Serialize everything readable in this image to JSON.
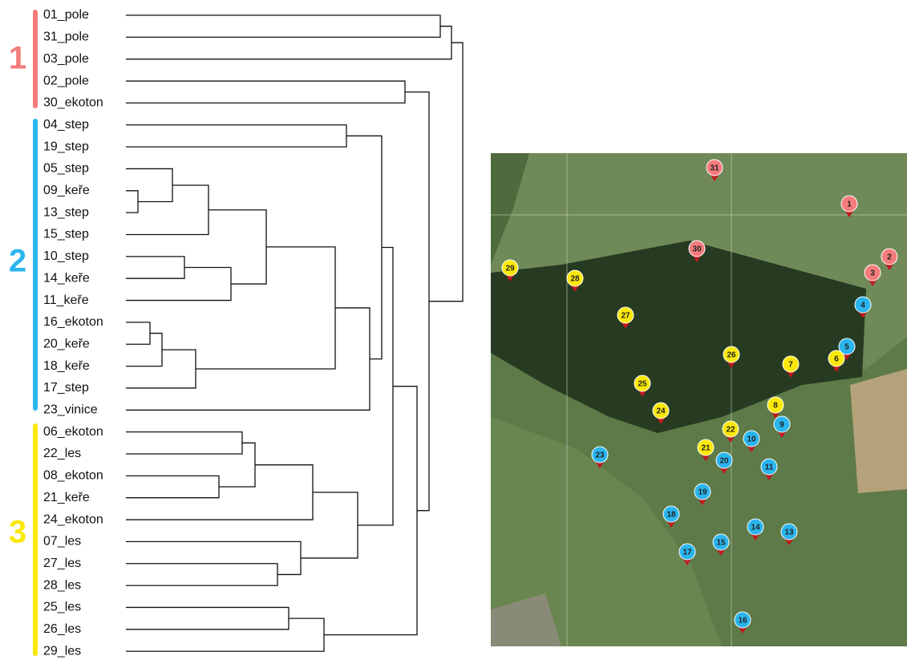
{
  "groups": [
    {
      "label": "1"
    },
    {
      "label": "2"
    },
    {
      "label": "3"
    }
  ],
  "leaves": [
    "01_pole",
    "31_pole",
    "03_pole",
    "02_pole",
    "30_ekoton",
    "04_step",
    "19_step",
    "05_step",
    "09_keře",
    "13_step",
    "15_step",
    "10_step",
    "14_keře",
    "11_keře",
    "16_ekoton",
    "20_keře",
    "18_keře",
    "17_step",
    "23_vinice",
    "06_ekoton",
    "22_les",
    "08_ekoton",
    "21_keře",
    "24_ekoton",
    "07_les",
    "27_les",
    "28_les",
    "25_les",
    "26_les",
    "29_les"
  ],
  "map": {
    "markers": [
      "31",
      "1",
      "2",
      "3",
      "30",
      "29",
      "28",
      "27",
      "4",
      "5",
      "6",
      "26",
      "7",
      "25",
      "8",
      "24",
      "9",
      "22",
      "10",
      "21",
      "23",
      "20",
      "11",
      "19",
      "18",
      "14",
      "13",
      "15",
      "17",
      "16"
    ]
  }
}
